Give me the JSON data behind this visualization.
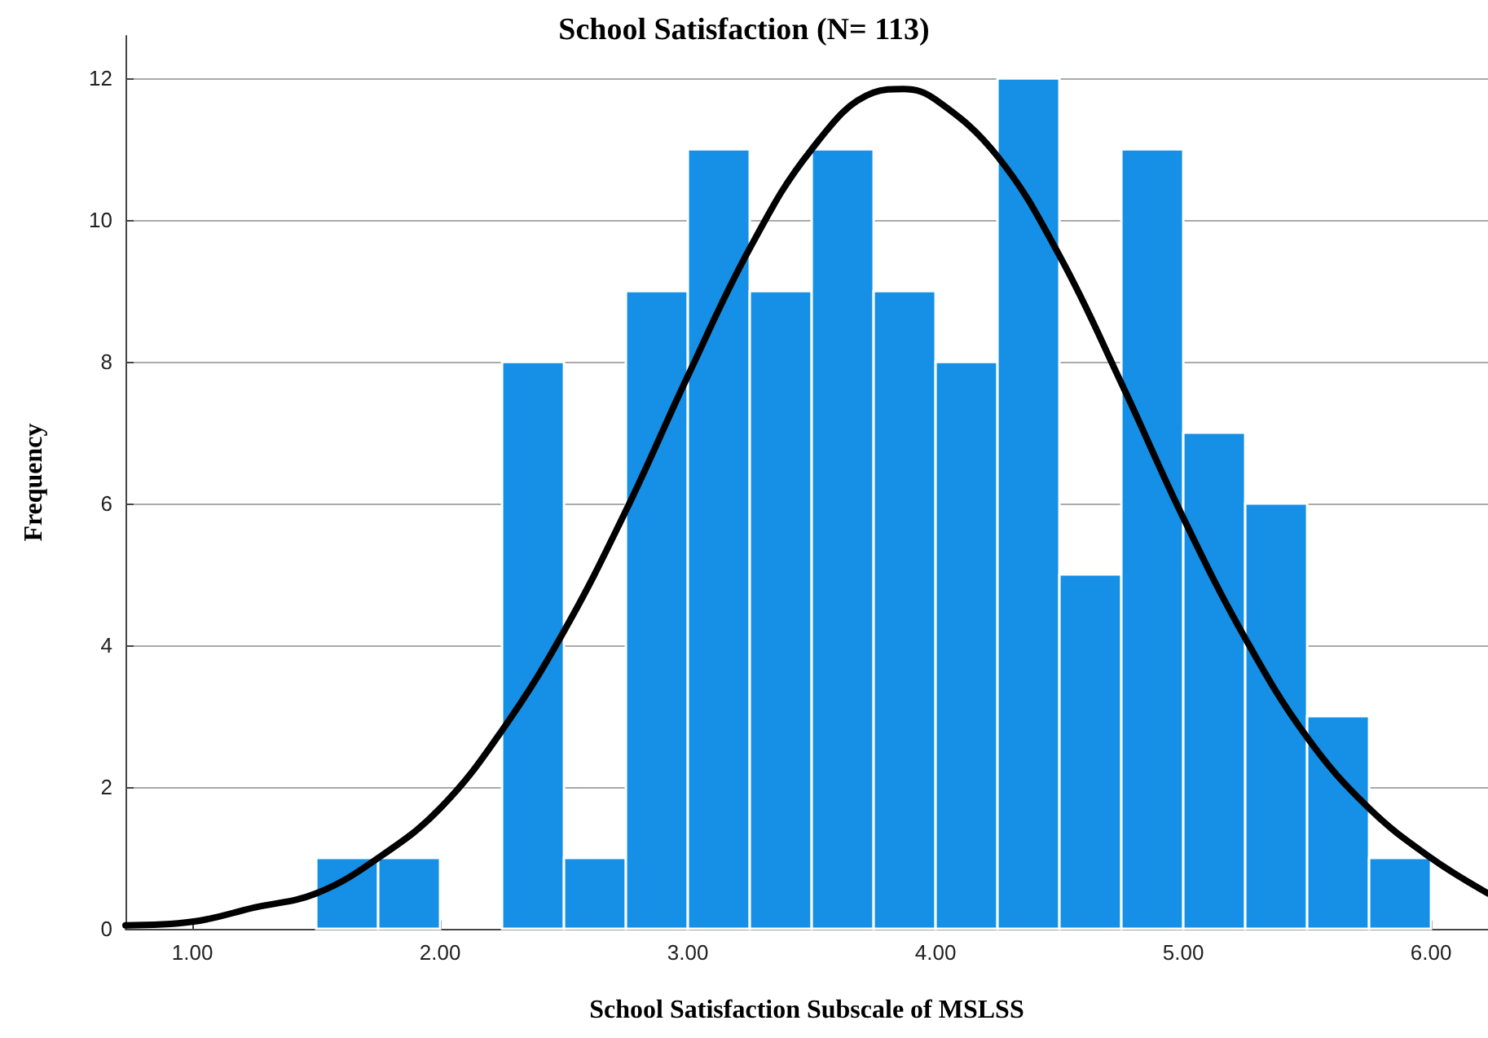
{
  "chart_data": {
    "type": "histogram",
    "title": "School Satisfaction (N= 113)",
    "xlabel": "School Satisfaction Subscale of MSLSS",
    "ylabel": "Frequency",
    "series": [
      {
        "color": "#1590e6",
        "bins": [
          1.5,
          1.75,
          2.0,
          2.25,
          2.5,
          2.75,
          3.0,
          3.25,
          3.5,
          3.75,
          4.0,
          4.25,
          4.5,
          4.75,
          5.0,
          5.25,
          5.5,
          5.75,
          6.0
        ],
        "values": [
          1,
          1,
          0,
          8,
          1,
          9,
          11,
          9,
          11,
          9,
          8,
          12,
          5,
          11,
          7,
          6,
          3,
          1
        ]
      },
      {
        "type": "line",
        "color": "#000000",
        "x": [
          0.73,
          1.0,
          1.25,
          1.5,
          1.75,
          2.0,
          2.25,
          2.5,
          2.75,
          3.0,
          3.25,
          3.5,
          3.75,
          3.87,
          4.0,
          4.25,
          4.5,
          4.75,
          5.0,
          5.25,
          5.5,
          5.75,
          6.0,
          6.23
        ],
        "values": [
          0.05,
          0.1,
          0.3,
          0.5,
          1.0,
          1.7,
          2.8,
          4.2,
          5.9,
          7.8,
          9.6,
          11.0,
          11.8,
          11.85,
          11.7,
          10.9,
          9.5,
          7.7,
          5.8,
          4.1,
          2.7,
          1.7,
          1.0,
          0.5
        ]
      }
    ],
    "xlim": [
      0.73,
      6.23
    ],
    "xticks": [
      {
        "value": 1,
        "label": "1.00"
      },
      {
        "value": 2,
        "label": "2.00"
      },
      {
        "value": 3,
        "label": "3.00"
      },
      {
        "value": 4,
        "label": "4.00"
      },
      {
        "value": 5,
        "label": "5.00"
      },
      {
        "value": 6,
        "label": "6.00"
      }
    ],
    "ylim": [
      0,
      12.6
    ],
    "yticks": [
      0,
      2,
      4,
      6,
      8,
      10,
      12
    ],
    "grid": "y",
    "marker": "none",
    "line_style": "solid"
  }
}
